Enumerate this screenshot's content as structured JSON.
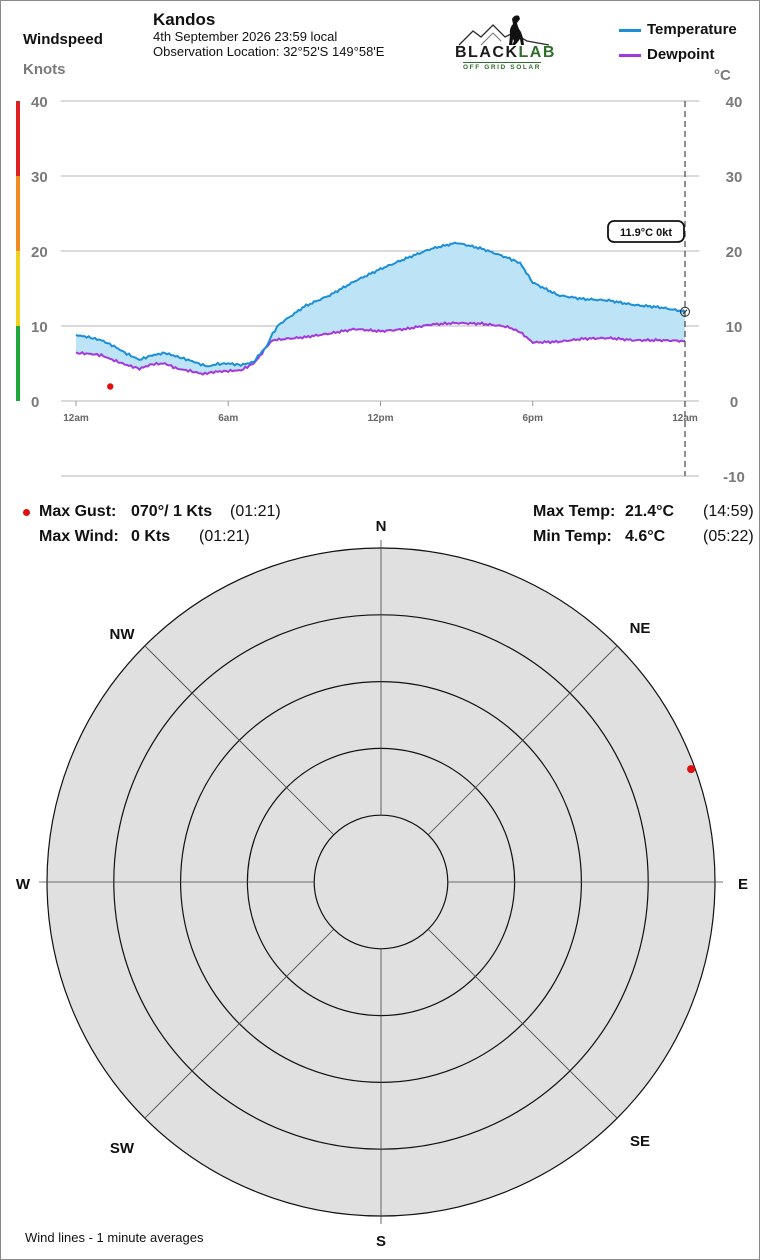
{
  "header": {
    "windspeed_label": "Windspeed",
    "knots_label": "Knots",
    "station_name": "Kandos",
    "date_time": "4th September 2026  23:59 local",
    "location_prefix": "Observation Location: ",
    "location_coords": "32°52'S 149°58'E",
    "logo_text_black": "BLACK",
    "logo_text_lab": "LAB",
    "logo_subtext": "OFF GRID SOLAR",
    "celsius_label": "°C"
  },
  "legend": {
    "temperature": "Temperature",
    "dewpoint": "Dewpoint"
  },
  "colors": {
    "temperature": "#1b8fd8",
    "dewpoint": "#a437de",
    "fill": "#bde3f6",
    "gust_marker": "#e01010",
    "rose_fill": "#e0e0e0",
    "gauge": [
      "#1fa83a",
      "#f0d020",
      "#f08c20",
      "#dd2020"
    ]
  },
  "readout": {
    "current": "11.9°C  0kt"
  },
  "stats": {
    "max_gust_label": "Max Gust:",
    "max_gust_value": "070°/ 1 Kts",
    "max_gust_time": "(01:21)",
    "max_wind_label": "Max Wind:",
    "max_wind_value": "0 Kts",
    "max_wind_time": "(01:21)",
    "max_temp_label": "Max Temp:",
    "max_temp_value": "21.4°C",
    "max_temp_time": "(14:59)",
    "min_temp_label": "Min Temp:",
    "min_temp_value": "4.6°C",
    "min_temp_time": "(05:22)"
  },
  "rose": {
    "compass": [
      "N",
      "NE",
      "E",
      "SE",
      "S",
      "SW",
      "W",
      "NW"
    ],
    "footer": "Wind lines - 1 minute averages",
    "gust": {
      "direction_deg": 70,
      "speed_kts": 1
    },
    "ring_count": 5
  },
  "chart_data": {
    "type": "line",
    "x_unit": "hours",
    "xlim": [
      0,
      24
    ],
    "x_ticks": [
      0,
      6,
      12,
      18,
      24
    ],
    "x_tick_labels": [
      "12am",
      "6am",
      "12pm",
      "6pm",
      "12am"
    ],
    "left_axis": {
      "label": "Knots",
      "ylim": [
        0,
        40
      ],
      "ticks": [
        0,
        10,
        20,
        30,
        40
      ]
    },
    "right_axis": {
      "label": "°C",
      "ylim": [
        -10,
        40
      ],
      "ticks": [
        -10,
        0,
        10,
        20,
        30,
        40
      ]
    },
    "series": [
      {
        "name": "Temperature",
        "axis": "right",
        "x": [
          0,
          0.5,
          1,
          1.5,
          2,
          2.5,
          3,
          3.5,
          4,
          4.5,
          5,
          5.25,
          5.5,
          6,
          6.5,
          7,
          7.25,
          7.5,
          7.75,
          8,
          9,
          10,
          11,
          12,
          13,
          14,
          15,
          16,
          17,
          17.5,
          18,
          19,
          20,
          21,
          22,
          23,
          24
        ],
        "y": [
          8.8,
          8.5,
          8.1,
          7.3,
          6.3,
          5.5,
          6.1,
          6.4,
          5.9,
          5.4,
          4.8,
          4.6,
          4.9,
          5.0,
          4.8,
          5.2,
          6.3,
          7.2,
          9.0,
          10.2,
          12.6,
          14.1,
          16.0,
          17.6,
          19.0,
          20.3,
          21.1,
          20.3,
          19.1,
          18.4,
          15.8,
          14.1,
          13.6,
          13.4,
          12.8,
          12.5,
          11.9
        ]
      },
      {
        "name": "Dewpoint",
        "axis": "right",
        "x": [
          0,
          0.5,
          1,
          1.5,
          2,
          2.5,
          3,
          3.5,
          4,
          4.5,
          5,
          5.5,
          6,
          6.5,
          7,
          7.25,
          7.5,
          7.75,
          8,
          9,
          10,
          11,
          12,
          13,
          14,
          15,
          16,
          17,
          17.5,
          18,
          19,
          20,
          21,
          22,
          23,
          24
        ],
        "y": [
          6.4,
          6.3,
          6.1,
          5.4,
          4.8,
          4.3,
          4.9,
          5.0,
          4.3,
          4.0,
          3.6,
          3.9,
          4.0,
          4.1,
          5.0,
          6.0,
          7.2,
          8.1,
          8.2,
          8.5,
          9.0,
          9.6,
          9.3,
          9.6,
          10.2,
          10.4,
          10.3,
          9.9,
          9.2,
          7.8,
          7.9,
          8.3,
          8.4,
          8.1,
          8.1,
          8.0
        ]
      }
    ],
    "gust_point": {
      "x": 1.35,
      "y_knots": 1
    },
    "current_time_x": 24
  }
}
